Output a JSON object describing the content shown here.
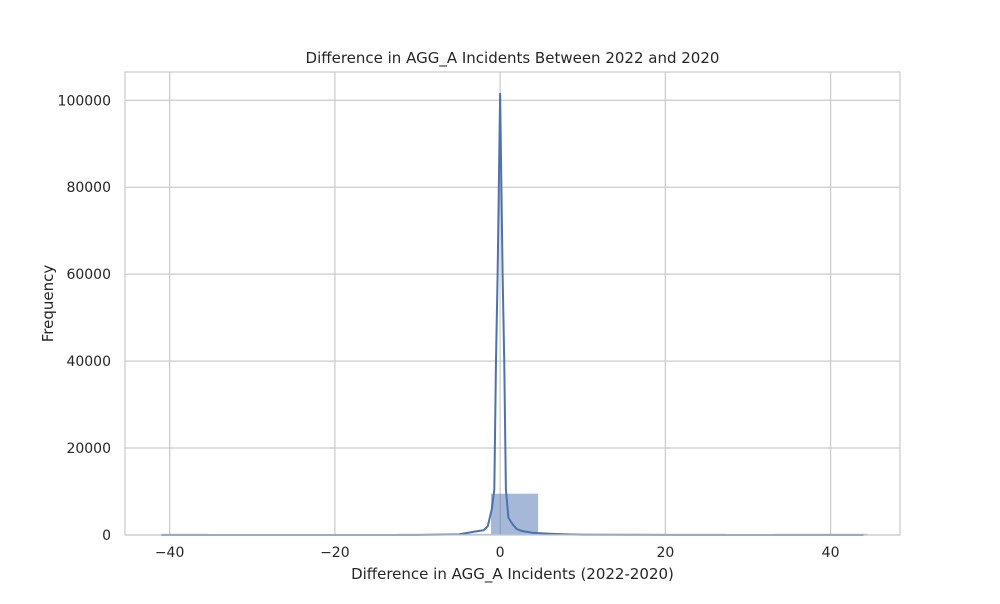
{
  "chart_data": {
    "type": "bar",
    "title": "Difference in AGG_A Incidents Between 2022 and 2020",
    "xlabel": "Difference in AGG_A Incidents (2022-2020)",
    "ylabel": "Frequency",
    "xlim": [
      -45.4,
      48.4
    ],
    "ylim": [
      0,
      106500
    ],
    "xticks": [
      -40,
      -20,
      0,
      20,
      40
    ],
    "xtick_labels": [
      "−40",
      "−20",
      "0",
      "20",
      "40"
    ],
    "yticks": [
      0,
      20000,
      40000,
      60000,
      80000,
      100000
    ],
    "ytick_labels": [
      "0",
      "20000",
      "40000",
      "60000",
      "80000",
      "100000"
    ],
    "grid": true,
    "colors": {
      "bar": "#4c72b0",
      "kde": "#4c72b0",
      "grid": "#cccccc",
      "frame": "#cccccc"
    },
    "histogram": {
      "bin_edges": [
        -41,
        -35.3,
        -29.6,
        -23.9,
        -18.2,
        -12.5,
        -6.8,
        -1.1,
        4.6,
        10.3,
        16.0,
        21.7,
        27.4,
        33.1,
        38.8,
        44.5
      ],
      "counts": [
        1,
        0,
        0,
        0,
        0,
        2,
        60,
        9500,
        120,
        10,
        3,
        1,
        0,
        1,
        1
      ]
    },
    "kde": {
      "x": [
        -41,
        -30,
        -20,
        -10,
        -5,
        -3,
        -2,
        -1.5,
        -1,
        -0.7,
        -0.5,
        -0.3,
        0,
        0.3,
        0.5,
        0.7,
        1,
        1.5,
        2,
        2.5,
        3,
        4,
        6,
        8,
        10,
        15,
        20,
        30,
        44
      ],
      "y": [
        0,
        0,
        0,
        0,
        150,
        800,
        1100,
        2000,
        6000,
        10500,
        40000,
        60000,
        101500,
        60000,
        40000,
        10500,
        4000,
        2500,
        1400,
        1000,
        800,
        500,
        300,
        150,
        70,
        20,
        0,
        0,
        0
      ]
    }
  }
}
